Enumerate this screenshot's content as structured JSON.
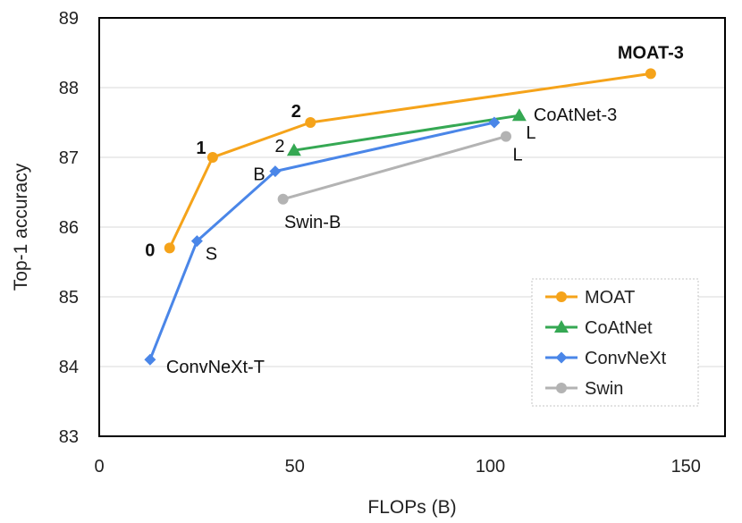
{
  "chart_data": {
    "type": "line",
    "xlabel": "FLOPs (B)",
    "ylabel": "Top-1 accuracy",
    "xlim": [
      0,
      160
    ],
    "ylim": [
      83,
      89
    ],
    "xticks": [
      "0",
      "50",
      "100",
      "150"
    ],
    "yticks": [
      "83",
      "84",
      "85",
      "86",
      "87",
      "88",
      "89"
    ],
    "grid": "horizontal",
    "legend_position": "bottom-right",
    "series": [
      {
        "name": "MOAT",
        "color": "#f5a31a",
        "marker": "circle",
        "x": [
          18,
          29,
          54,
          141
        ],
        "y": [
          85.7,
          87.0,
          87.5,
          88.2
        ],
        "labels": [
          "0",
          "1",
          "2",
          "MOAT-3"
        ]
      },
      {
        "name": "CoAtNet",
        "color": "#35a853",
        "marker": "triangle",
        "x": [
          49.8,
          107.4
        ],
        "y": [
          87.1,
          87.6
        ],
        "labels": [
          "2",
          "CoAtNet-3"
        ]
      },
      {
        "name": "ConvNeXt",
        "color": "#4a86e8",
        "marker": "diamond",
        "x": [
          13,
          25,
          45,
          101
        ],
        "y": [
          84.1,
          85.8,
          86.8,
          87.5
        ],
        "labels": [
          "ConvNeXt-T",
          "S",
          "B",
          "L"
        ]
      },
      {
        "name": "Swin",
        "color": "#b3b3b3",
        "marker": "circle",
        "x": [
          47,
          104
        ],
        "y": [
          86.4,
          87.3
        ],
        "labels": [
          "Swin-B",
          "L"
        ]
      }
    ]
  }
}
